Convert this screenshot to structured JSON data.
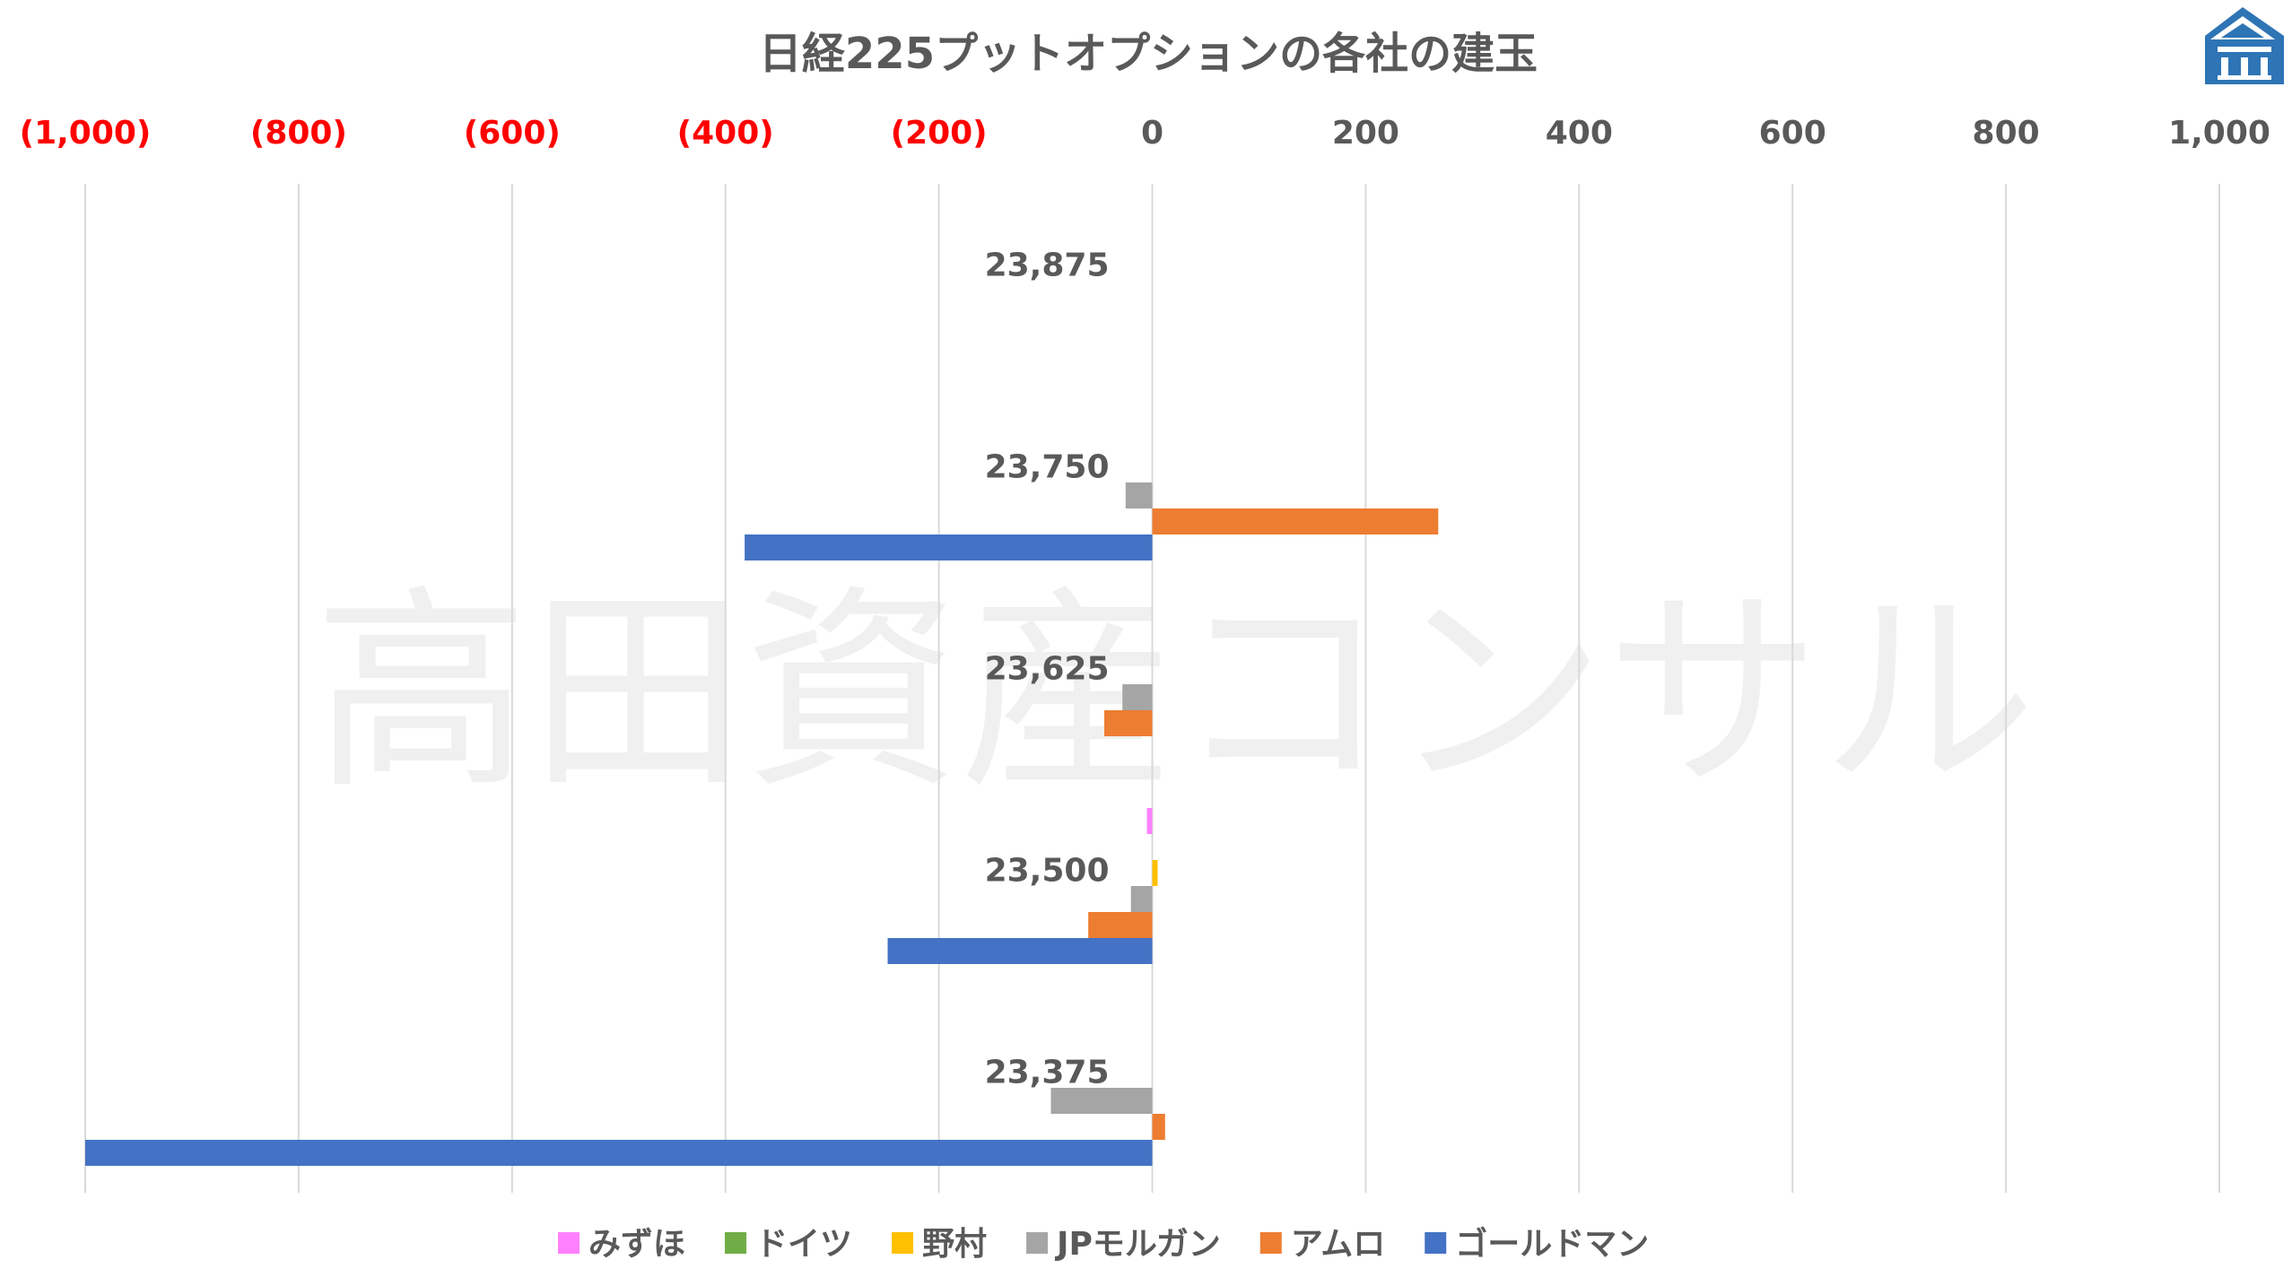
{
  "watermark": "高田資産コンサル",
  "chart_data": {
    "type": "bar",
    "orientation": "horizontal",
    "title": "日経225プットオプションの各社の建玉",
    "xlim": [
      -1000,
      1000
    ],
    "x_ticks": [
      -1000,
      -800,
      -600,
      -400,
      -200,
      0,
      200,
      400,
      600,
      800,
      1000
    ],
    "x_tick_labels": [
      "(1,000)",
      "(800)",
      "(600)",
      "(400)",
      "(200)",
      "0",
      "200",
      "400",
      "600",
      "800",
      "1,000"
    ],
    "negative_tick_color": "#ff0000",
    "positive_tick_color": "#595959",
    "grid": true,
    "legend_position": "bottom",
    "categories": [
      "23,875",
      "23,750",
      "23,625",
      "23,500",
      "23,375"
    ],
    "series": [
      {
        "name": "みずほ",
        "color": "#ff80ff",
        "values": [
          0,
          0,
          0,
          -5,
          0
        ]
      },
      {
        "name": "ドイツ",
        "color": "#70ad47",
        "values": [
          0,
          0,
          0,
          0,
          0
        ]
      },
      {
        "name": "野村",
        "color": "#ffc000",
        "values": [
          0,
          0,
          0,
          5,
          0
        ]
      },
      {
        "name": "JPモルガン",
        "color": "#a5a5a5",
        "values": [
          0,
          -25,
          -28,
          -20,
          -95
        ]
      },
      {
        "name": "アムロ",
        "color": "#ed7d31",
        "values": [
          0,
          268,
          -45,
          -60,
          12
        ]
      },
      {
        "name": "ゴールドマン",
        "color": "#4472c4",
        "values": [
          0,
          -382,
          0,
          -248,
          -1000
        ]
      }
    ]
  }
}
